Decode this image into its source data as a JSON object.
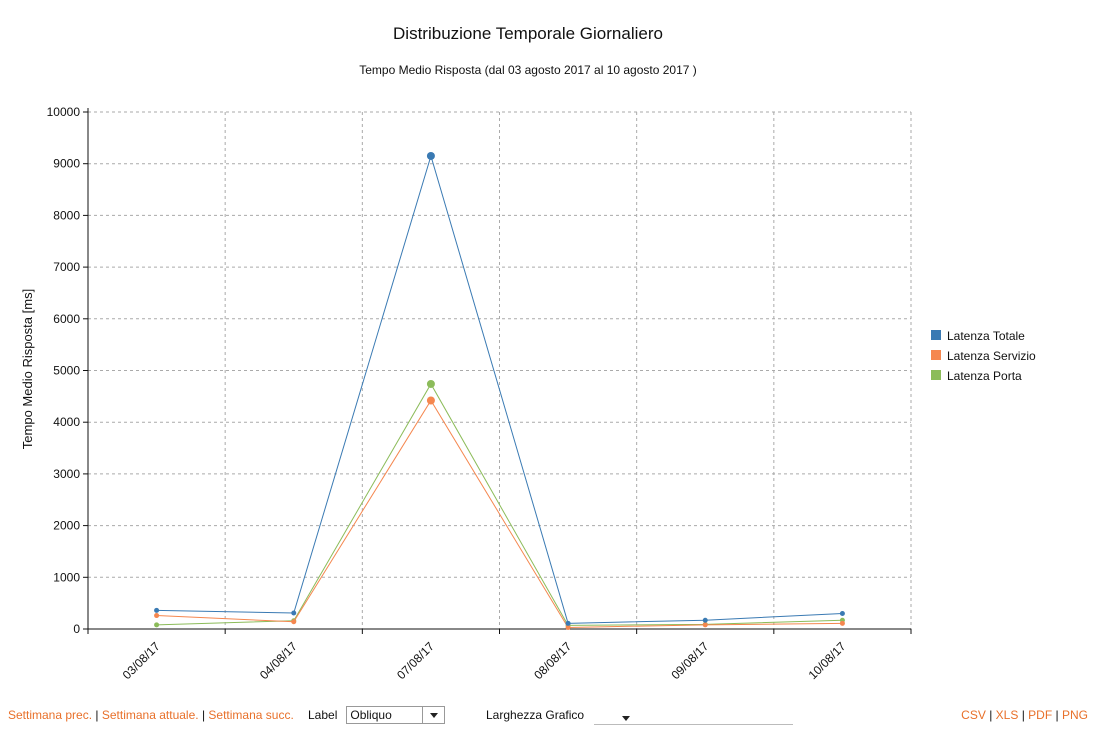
{
  "chart_data": {
    "type": "line",
    "title": "Distribuzione Temporale Giornaliero",
    "subtitle": "Tempo Medio Risposta (dal 03 agosto 2017 al 10 agosto 2017 )",
    "xlabel": "",
    "ylabel": "Tempo Medio Risposta [ms]",
    "categories": [
      "03/08/17",
      "04/08/17",
      "07/08/17",
      "08/08/17",
      "09/08/17",
      "10/08/17"
    ],
    "ylim": [
      0,
      10000
    ],
    "yticks": [
      0,
      1000,
      2000,
      3000,
      4000,
      5000,
      6000,
      7000,
      8000,
      9000,
      10000
    ],
    "grid": true,
    "legend_position": "right",
    "series": [
      {
        "name": "Latenza Totale",
        "color": "#3a7ab3",
        "values": [
          360,
          310,
          9150,
          110,
          170,
          300
        ]
      },
      {
        "name": "Latenza Servizio",
        "color": "#f5874f",
        "values": [
          260,
          140,
          4420,
          30,
          80,
          110
        ]
      },
      {
        "name": "Latenza Porta",
        "color": "#8cbc5a",
        "values": [
          80,
          160,
          4740,
          70,
          90,
          170
        ]
      }
    ]
  },
  "footer": {
    "nav": {
      "prev": "Settimana prec.",
      "current": "Settimana attuale.",
      "next": "Settimana succ.",
      "separator": "|"
    },
    "label_select": {
      "label": "Label",
      "value": "Obliquo"
    },
    "width_select": {
      "label": "Larghezza Grafico",
      "value": ""
    },
    "export": {
      "csv": "CSV",
      "xls": "XLS",
      "pdf": "PDF",
      "png": "PNG",
      "separator": "|"
    }
  }
}
